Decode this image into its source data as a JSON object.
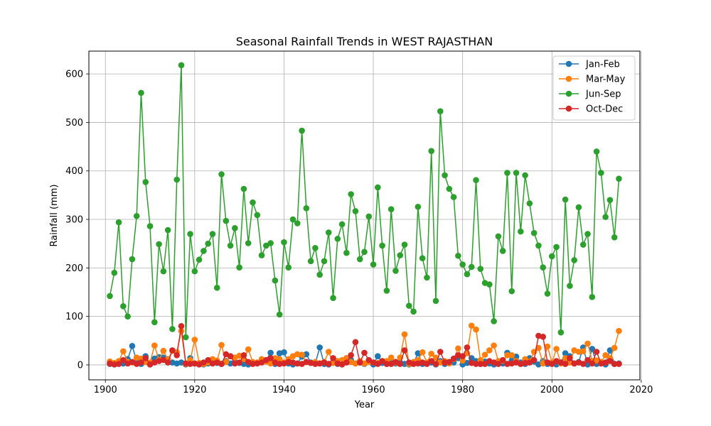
{
  "chart_data": {
    "type": "line",
    "title": "Seasonal Rainfall Trends in WEST RAJASTHAN",
    "xlabel": "Year",
    "ylabel": "Rainfall (mm)",
    "xlim": [
      1896.3,
      2019.7
    ],
    "ylim": [
      -30.8,
      647
    ],
    "xticks": [
      1900,
      1920,
      1940,
      1960,
      1980,
      2000,
      2020
    ],
    "yticks": [
      0,
      100,
      200,
      300,
      400,
      500,
      600
    ],
    "grid": true,
    "legend_position": "top-right",
    "x": [
      1901,
      1902,
      1903,
      1904,
      1905,
      1906,
      1907,
      1908,
      1909,
      1910,
      1911,
      1912,
      1913,
      1914,
      1915,
      1916,
      1917,
      1918,
      1919,
      1920,
      1921,
      1922,
      1923,
      1924,
      1925,
      1926,
      1927,
      1928,
      1929,
      1930,
      1931,
      1932,
      1933,
      1934,
      1935,
      1936,
      1937,
      1938,
      1939,
      1940,
      1941,
      1942,
      1943,
      1944,
      1945,
      1946,
      1947,
      1948,
      1949,
      1950,
      1951,
      1952,
      1953,
      1954,
      1955,
      1956,
      1957,
      1958,
      1959,
      1960,
      1961,
      1962,
      1963,
      1964,
      1965,
      1966,
      1967,
      1968,
      1969,
      1970,
      1971,
      1972,
      1973,
      1974,
      1975,
      1976,
      1977,
      1978,
      1979,
      1980,
      1981,
      1982,
      1983,
      1984,
      1985,
      1986,
      1987,
      1988,
      1989,
      1990,
      1991,
      1992,
      1993,
      1994,
      1995,
      1996,
      1997,
      1998,
      1999,
      2000,
      2001,
      2002,
      2003,
      2004,
      2005,
      2006,
      2007,
      2008,
      2009,
      2010,
      2011,
      2012,
      2013,
      2014,
      2015
    ],
    "series": [
      {
        "name": "Jan-Feb",
        "color": "#1f77b4",
        "values": [
          2,
          1,
          5,
          3,
          12,
          39,
          8,
          2,
          18,
          1,
          13,
          16,
          15,
          12,
          5,
          3,
          5,
          1,
          14,
          3,
          2,
          1,
          3,
          9,
          4,
          2,
          8,
          3,
          6,
          4,
          2,
          1,
          3,
          5,
          6,
          10,
          25,
          2,
          24,
          26,
          3,
          1,
          3,
          17,
          22,
          5,
          3,
          36,
          2,
          1,
          5,
          2,
          4,
          14,
          10,
          3,
          5,
          2,
          8,
          1,
          18,
          4,
          2,
          8,
          3,
          5,
          2,
          1,
          4,
          24,
          2,
          3,
          5,
          1,
          8,
          2,
          4,
          5,
          14,
          1,
          4,
          14,
          8,
          2,
          7,
          3,
          1,
          5,
          3,
          25,
          9,
          17,
          5,
          2,
          14,
          7,
          1,
          8,
          2,
          3,
          1,
          5,
          24,
          18,
          3,
          6,
          36,
          1,
          33,
          2,
          4,
          1,
          30,
          2,
          3
        ]
      },
      {
        "name": "Mar-May",
        "color": "#ff7f0e",
        "values": [
          7,
          4,
          8,
          28,
          6,
          5,
          15,
          13,
          6,
          5,
          40,
          10,
          29,
          11,
          29,
          26,
          70,
          2,
          10,
          52,
          4,
          2,
          5,
          12,
          9,
          41,
          6,
          18,
          15,
          19,
          12,
          32,
          6,
          5,
          12,
          7,
          3,
          14,
          12,
          5,
          12,
          18,
          22,
          21,
          6,
          4,
          6,
          3,
          6,
          27,
          4,
          8,
          10,
          14,
          6,
          3,
          8,
          3,
          6,
          5,
          4,
          8,
          8,
          15,
          5,
          15,
          63,
          2,
          6,
          10,
          26,
          5,
          23,
          15,
          5,
          8,
          3,
          12,
          34,
          9,
          24,
          81,
          73,
          10,
          21,
          30,
          40,
          8,
          9,
          20,
          20,
          8,
          2,
          12,
          7,
          27,
          35,
          3,
          38,
          5,
          33,
          3,
          14,
          5,
          30,
          27,
          28,
          44,
          8,
          9,
          6,
          20,
          14,
          35,
          70
        ]
      },
      {
        "name": "Jun-Sep",
        "color": "#2ca02c",
        "values": [
          142,
          190,
          294,
          121,
          100,
          218,
          307,
          561,
          377,
          286,
          88,
          249,
          193,
          278,
          74,
          382,
          618,
          57,
          270,
          193,
          217,
          235,
          250,
          270,
          159,
          393,
          297,
          246,
          282,
          201,
          363,
          251,
          335,
          309,
          226,
          246,
          251,
          174,
          104,
          253,
          201,
          300,
          292,
          483,
          323,
          214,
          241,
          186,
          214,
          273,
          138,
          260,
          290,
          231,
          352,
          317,
          218,
          233,
          306,
          207,
          366,
          246,
          153,
          321,
          194,
          226,
          248,
          122,
          110,
          326,
          220,
          180,
          441,
          132,
          523,
          391,
          363,
          346,
          225,
          207,
          187,
          202,
          381,
          198,
          169,
          166,
          90,
          265,
          235,
          396,
          152,
          396,
          275,
          391,
          333,
          272,
          246,
          201,
          147,
          224,
          243,
          67,
          341,
          163,
          216,
          325,
          248,
          270,
          140,
          440,
          396,
          305,
          340,
          263,
          384
        ]
      },
      {
        "name": "Oct-Dec",
        "color": "#d62728",
        "values": [
          3,
          1,
          2,
          10,
          3,
          6,
          2,
          5,
          14,
          1,
          5,
          8,
          10,
          5,
          30,
          20,
          80,
          3,
          2,
          3,
          1,
          5,
          10,
          3,
          5,
          2,
          22,
          18,
          3,
          5,
          20,
          6,
          2,
          3,
          5,
          10,
          14,
          5,
          2,
          3,
          6,
          5,
          3,
          2,
          6,
          4,
          2,
          3,
          5,
          2,
          14,
          3,
          1,
          5,
          20,
          47,
          5,
          25,
          10,
          5,
          2,
          8,
          2,
          2,
          6,
          2,
          30,
          5,
          2,
          3,
          5,
          2,
          8,
          2,
          27,
          5,
          6,
          13,
          20,
          18,
          36,
          4,
          2,
          2,
          2,
          8,
          5,
          2,
          10,
          2,
          3,
          5,
          2,
          4,
          5,
          10,
          60,
          58,
          5,
          2,
          8,
          5,
          2,
          14,
          3,
          5,
          2,
          10,
          3,
          27,
          3,
          5,
          8,
          2,
          2
        ]
      }
    ]
  }
}
